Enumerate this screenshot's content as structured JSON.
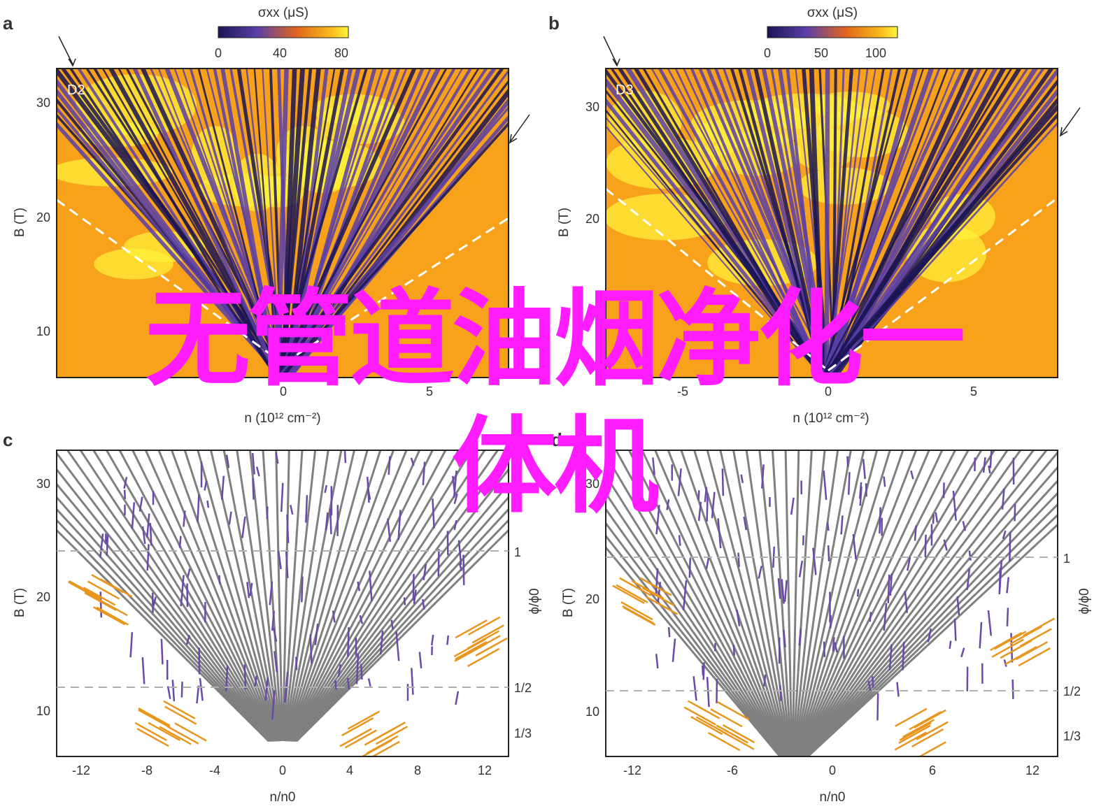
{
  "panels": [
    {
      "label": "a",
      "device": "D2",
      "type": "heatmap",
      "colorbar": {
        "title": "σxx (μS)",
        "ticks": [
          "0",
          "40",
          "80"
        ]
      },
      "xticks": [
        "0",
        "5"
      ],
      "yticks": [
        "10",
        "20",
        "30"
      ],
      "xlabel": "n (10¹² cm⁻²)",
      "ylabel": "B (T)"
    },
    {
      "label": "b",
      "device": "D3",
      "type": "heatmap",
      "colorbar": {
        "title": "σxx (μS)",
        "ticks": [
          "0",
          "50",
          "100"
        ]
      },
      "xticks": [
        "-5",
        "0",
        "5"
      ],
      "yticks": [
        "20",
        "30"
      ],
      "xlabel": "n (10¹² cm⁻²)",
      "ylabel": "B (T)"
    },
    {
      "label": "c",
      "type": "line",
      "xticks": [
        "-12",
        "-8",
        "-4",
        "0",
        "4",
        "8",
        "12"
      ],
      "yticks": [
        "10",
        "20",
        "30"
      ],
      "rticks": [
        "1",
        "1/2",
        "1/3"
      ],
      "xlabel": "n/n0",
      "ylabel": "B (T)",
      "rlabel": "ϕ/ϕ0"
    },
    {
      "label": "d",
      "type": "line",
      "xticks": [
        "-12",
        "-6",
        "0",
        "6",
        "12"
      ],
      "yticks": [
        "10",
        "20",
        "30"
      ],
      "rticks": [
        "1",
        "1/2",
        "1/3"
      ],
      "xlabel": "n/n0",
      "ylabel": "B (T)",
      "rlabel": "ϕ/ϕ0"
    }
  ],
  "chart_data": [
    {
      "type": "heatmap",
      "panel": "a",
      "colorbar_range": [
        0,
        85
      ],
      "xlim": [
        -13,
        9
      ],
      "ylim": [
        6,
        33
      ],
      "xlabel": "n (10¹² cm⁻²)",
      "ylabel": "B (T)"
    },
    {
      "type": "heatmap",
      "panel": "b",
      "colorbar_range": [
        0,
        120
      ],
      "xlim": [
        -8,
        8
      ],
      "ylim": [
        6,
        33
      ],
      "xlabel": "n (10¹² cm⁻²)",
      "ylabel": "B (T)"
    },
    {
      "type": "line",
      "panel": "c",
      "xlim": [
        -13,
        13
      ],
      "ylim": [
        6,
        33
      ],
      "dashed_levels": [
        {
          "B": 24,
          "label": "1"
        },
        {
          "B": 12,
          "label": "1/2"
        }
      ],
      "right_ticks": [
        {
          "B": 24,
          "label": "1"
        },
        {
          "B": 12,
          "label": "1/2"
        },
        {
          "B": 8,
          "label": "1/3"
        }
      ],
      "xlabel": "n/n0",
      "ylabel": "B (T)"
    },
    {
      "type": "line",
      "panel": "d",
      "xlim": [
        -13,
        13
      ],
      "ylim": [
        6,
        33
      ],
      "dashed_levels": [
        {
          "B": 23.5,
          "label": "1"
        },
        {
          "B": 11.8,
          "label": "1/2"
        }
      ],
      "right_ticks": [
        {
          "B": 23.5,
          "label": "1"
        },
        {
          "B": 11.8,
          "label": "1/2"
        },
        {
          "B": 7.8,
          "label": "1/3"
        }
      ],
      "xlabel": "n/n0",
      "ylabel": "B (T)"
    }
  ],
  "watermark": {
    "line1": "无管道油烟净化一",
    "line2": "体机",
    "color": "#ff1cff"
  },
  "colors": {
    "low": "#1a1555",
    "mid": "#5a3fa8",
    "high": "#f7a21a",
    "top": "#fff33a",
    "gray_line": "#808080",
    "purple_line": "#6a4aa8",
    "orange_line": "#e8961e"
  }
}
